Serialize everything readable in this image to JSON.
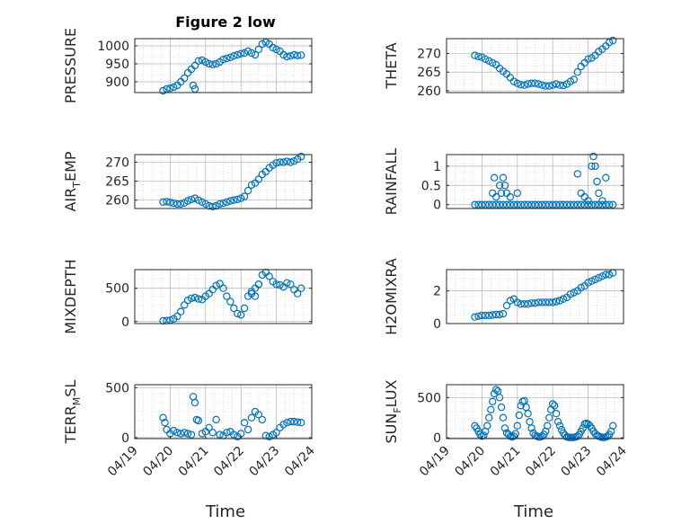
{
  "figure": {
    "title": "Figure 2 low",
    "xlabel": "Time"
  },
  "colors": {
    "marker": "#0072BD",
    "axis": "#262626",
    "grid": "#c8c8c8"
  },
  "chart_data": [
    {
      "type": "scatter",
      "ylabel_main": "PRESSURE",
      "ylabel_sub": "",
      "ylabel_tail": "",
      "xlim": [
        0,
        5
      ],
      "ylim": [
        870,
        1020
      ],
      "yticks": [
        900,
        950,
        1000
      ],
      "xticks": [],
      "xticklabels": [],
      "series": [
        {
          "x": [
            0.8,
            0.9,
            1.0,
            1.1,
            1.2,
            1.3,
            1.4,
            1.5,
            1.6,
            1.7,
            1.8,
            1.9,
            2.0,
            2.1,
            2.2,
            2.3,
            2.4,
            2.5,
            2.6,
            2.7,
            2.8,
            2.9,
            3.0,
            3.1,
            3.2,
            3.3,
            3.4,
            3.5,
            3.6,
            3.7,
            3.8,
            3.9,
            4.0,
            4.1,
            4.2,
            4.3,
            4.4,
            4.5,
            4.6,
            4.7,
            1.65,
            1.7
          ],
          "y": [
            875,
            880,
            882,
            885,
            890,
            900,
            910,
            925,
            935,
            945,
            958,
            960,
            955,
            950,
            948,
            950,
            955,
            962,
            965,
            968,
            972,
            975,
            978,
            980,
            985,
            980,
            975,
            990,
            1005,
            1010,
            1005,
            995,
            990,
            985,
            975,
            970,
            972,
            975,
            973,
            974,
            890,
            880
          ]
        }
      ]
    },
    {
      "type": "scatter",
      "ylabel_main": "THETA",
      "ylabel_sub": "",
      "ylabel_tail": "",
      "xlim": [
        0,
        5
      ],
      "ylim": [
        259.5,
        274
      ],
      "yticks": [
        260,
        265,
        270
      ],
      "xticks": [],
      "xticklabels": [],
      "series": [
        {
          "x": [
            0.8,
            0.9,
            1.0,
            1.1,
            1.2,
            1.3,
            1.4,
            1.5,
            1.6,
            1.7,
            1.8,
            1.9,
            2.0,
            2.1,
            2.2,
            2.3,
            2.4,
            2.5,
            2.6,
            2.7,
            2.8,
            2.9,
            3.0,
            3.1,
            3.2,
            3.3,
            3.4,
            3.5,
            3.6,
            3.7,
            3.8,
            3.9,
            4.0,
            4.1,
            4.2,
            4.3,
            4.4,
            4.5,
            4.6,
            4.7
          ],
          "y": [
            269.5,
            269.2,
            269.0,
            268.5,
            268.0,
            267.5,
            267.0,
            266.0,
            265.2,
            264.5,
            263.5,
            262.5,
            262.0,
            261.6,
            261.5,
            261.8,
            262.0,
            262.0,
            261.8,
            261.5,
            261.3,
            261.3,
            261.5,
            261.8,
            261.5,
            261.4,
            261.8,
            262.5,
            263.0,
            265.0,
            266.5,
            267.5,
            268.5,
            268.8,
            269.5,
            270.5,
            271.2,
            272.0,
            273.0,
            273.5
          ]
        }
      ]
    },
    {
      "type": "scatter",
      "ylabel_main": "AIR",
      "ylabel_sub": "T",
      "ylabel_tail": "EMP",
      "xlim": [
        0,
        5
      ],
      "ylim": [
        257.8,
        272
      ],
      "yticks": [
        260,
        265,
        270
      ],
      "xticks": [],
      "xticklabels": [],
      "series": [
        {
          "x": [
            0.8,
            0.9,
            1.0,
            1.1,
            1.2,
            1.3,
            1.4,
            1.5,
            1.6,
            1.7,
            1.8,
            1.9,
            2.0,
            2.1,
            2.2,
            2.3,
            2.4,
            2.5,
            2.6,
            2.7,
            2.8,
            2.9,
            3.0,
            3.1,
            3.2,
            3.3,
            3.4,
            3.5,
            3.6,
            3.7,
            3.8,
            3.9,
            4.0,
            4.1,
            4.2,
            4.3,
            4.4,
            4.5,
            4.6,
            4.7
          ],
          "y": [
            259.5,
            259.6,
            259.4,
            259.2,
            259.0,
            259.0,
            259.3,
            259.8,
            260.2,
            260.5,
            260.0,
            259.5,
            259.0,
            258.5,
            258.3,
            258.5,
            259.0,
            259.2,
            259.5,
            259.8,
            260.0,
            260.2,
            260.5,
            261.0,
            262.5,
            264.0,
            264.5,
            265.5,
            266.8,
            267.5,
            268.5,
            269.2,
            269.8,
            270.0,
            270.0,
            270.2,
            270.0,
            270.3,
            270.8,
            271.5
          ]
        }
      ]
    },
    {
      "type": "scatter",
      "ylabel_main": "RAINFALL",
      "ylabel_sub": "",
      "ylabel_tail": "",
      "xlim": [
        0,
        5
      ],
      "ylim": [
        -0.1,
        1.3
      ],
      "yticks": [
        0,
        0.5,
        1
      ],
      "xticks": [],
      "xticklabels": [],
      "series": [
        {
          "x": [
            0.8,
            0.9,
            1.0,
            1.1,
            1.2,
            1.3,
            1.4,
            1.5,
            1.6,
            1.7,
            1.8,
            1.9,
            2.0,
            2.1,
            2.2,
            2.3,
            2.4,
            2.5,
            2.6,
            2.7,
            2.8,
            2.9,
            3.0,
            3.1,
            3.2,
            3.3,
            3.4,
            3.5,
            3.6,
            3.7,
            3.8,
            3.9,
            4.0,
            4.1,
            4.2,
            4.3,
            4.4,
            4.5,
            4.6,
            4.7,
            1.3,
            1.35,
            1.4,
            1.5,
            1.55,
            1.6,
            1.65,
            1.7,
            1.8,
            2.0,
            3.7,
            3.8,
            3.9,
            4.0,
            4.1,
            4.15,
            4.2,
            4.25,
            4.3,
            4.5,
            4.4
          ],
          "y": [
            0,
            0,
            0,
            0,
            0,
            0,
            0,
            0,
            0,
            0,
            0,
            0,
            0,
            0,
            0,
            0,
            0,
            0,
            0,
            0,
            0,
            0,
            0,
            0,
            0,
            0,
            0,
            0,
            0,
            0,
            0,
            0,
            0,
            0,
            0,
            0,
            0,
            0,
            0,
            0,
            0.3,
            0.7,
            0.2,
            0.5,
            0.3,
            0.7,
            0.5,
            0.3,
            0.2,
            0.3,
            0.8,
            0.3,
            0.2,
            0.1,
            1.0,
            1.25,
            1.0,
            0.6,
            0.3,
            0.7,
            0.1
          ]
        }
      ]
    },
    {
      "type": "scatter",
      "ylabel_main": "MIXDEPTH",
      "ylabel_sub": "",
      "ylabel_tail": "",
      "xlim": [
        0,
        5
      ],
      "ylim": [
        -30,
        780
      ],
      "yticks": [
        0,
        500
      ],
      "xticks": [],
      "xticklabels": [],
      "series": [
        {
          "x": [
            0.8,
            0.9,
            1.0,
            1.1,
            1.2,
            1.3,
            1.4,
            1.5,
            1.6,
            1.7,
            1.8,
            1.9,
            2.0,
            2.1,
            2.2,
            2.3,
            2.4,
            2.5,
            2.6,
            2.7,
            2.8,
            2.9,
            3.0,
            3.1,
            3.2,
            3.3,
            3.4,
            3.5,
            3.6,
            3.7,
            3.8,
            3.9,
            4.0,
            4.1,
            4.2,
            4.3,
            4.4,
            4.5,
            4.6,
            4.7,
            3.3,
            3.4,
            3.5
          ],
          "y": [
            10,
            15,
            20,
            40,
            80,
            150,
            250,
            320,
            350,
            360,
            340,
            330,
            380,
            420,
            480,
            540,
            570,
            500,
            380,
            300,
            200,
            120,
            100,
            200,
            380,
            450,
            500,
            560,
            700,
            740,
            680,
            600,
            560,
            550,
            520,
            580,
            560,
            480,
            420,
            500,
            420,
            380,
            560
          ]
        }
      ]
    },
    {
      "type": "scatter",
      "ylabel_main": "H2OMIXRA",
      "ylabel_sub": "",
      "ylabel_tail": "",
      "xlim": [
        0,
        5
      ],
      "ylim": [
        0,
        3.3
      ],
      "yticks": [
        0,
        2
      ],
      "xticks": [],
      "xticklabels": [],
      "series": [
        {
          "x": [
            0.8,
            0.9,
            1.0,
            1.1,
            1.2,
            1.3,
            1.4,
            1.5,
            1.6,
            1.7,
            1.8,
            1.9,
            2.0,
            2.1,
            2.2,
            2.3,
            2.4,
            2.5,
            2.6,
            2.7,
            2.8,
            2.9,
            3.0,
            3.1,
            3.2,
            3.3,
            3.4,
            3.5,
            3.6,
            3.7,
            3.8,
            3.9,
            4.0,
            4.1,
            4.2,
            4.3,
            4.4,
            4.5,
            4.6,
            4.7
          ],
          "y": [
            0.4,
            0.45,
            0.5,
            0.5,
            0.5,
            0.52,
            0.55,
            0.55,
            0.6,
            1.1,
            1.4,
            1.5,
            1.3,
            1.2,
            1.2,
            1.2,
            1.25,
            1.25,
            1.3,
            1.3,
            1.3,
            1.3,
            1.3,
            1.35,
            1.4,
            1.5,
            1.6,
            1.8,
            1.9,
            2.0,
            2.2,
            2.3,
            2.5,
            2.6,
            2.7,
            2.8,
            2.9,
            3.0,
            3.0,
            3.1
          ]
        }
      ]
    },
    {
      "type": "scatter",
      "ylabel_main": "TERR",
      "ylabel_sub": "M",
      "ylabel_tail": "SL",
      "xlim": [
        0,
        5
      ],
      "ylim": [
        -10,
        530
      ],
      "yticks": [
        0,
        500
      ],
      "xticks": [
        0,
        1,
        2,
        3,
        4,
        5
      ],
      "xticklabels": [
        "04/19",
        "04/20",
        "04/21",
        "04/22",
        "04/23",
        "04/24"
      ],
      "series": [
        {
          "x": [
            0.8,
            0.85,
            0.9,
            1.0,
            1.1,
            1.2,
            1.3,
            1.4,
            1.5,
            1.6,
            1.65,
            1.7,
            1.75,
            1.8,
            1.9,
            2.0,
            2.1,
            2.2,
            2.3,
            2.4,
            2.5,
            2.6,
            2.7,
            2.8,
            2.9,
            3.0,
            3.1,
            3.2,
            3.3,
            3.4,
            3.5,
            3.6,
            3.7,
            3.8,
            3.9,
            4.0,
            4.1,
            4.2,
            4.3,
            4.4,
            4.5,
            4.6,
            4.7
          ],
          "y": [
            200,
            150,
            80,
            40,
            70,
            50,
            40,
            50,
            40,
            30,
            410,
            350,
            180,
            170,
            40,
            60,
            100,
            50,
            180,
            30,
            20,
            50,
            60,
            30,
            10,
            40,
            150,
            80,
            200,
            260,
            230,
            180,
            20,
            10,
            30,
            50,
            100,
            130,
            150,
            160,
            160,
            155,
            150
          ]
        }
      ]
    },
    {
      "type": "scatter",
      "ylabel_main": "SUN",
      "ylabel_sub": "F",
      "ylabel_tail": "LUX",
      "xlim": [
        0,
        5
      ],
      "ylim": [
        -10,
        660
      ],
      "yticks": [
        0,
        500
      ],
      "xticks": [
        0,
        1,
        2,
        3,
        4,
        5
      ],
      "xticklabels": [
        "04/19",
        "04/20",
        "04/21",
        "04/22",
        "04/23",
        "04/24"
      ],
      "series": [
        {
          "x": [
            0.8,
            0.85,
            0.9,
            0.95,
            1.0,
            1.05,
            1.1,
            1.15,
            1.2,
            1.25,
            1.3,
            1.35,
            1.4,
            1.45,
            1.5,
            1.55,
            1.6,
            1.65,
            1.7,
            1.75,
            1.8,
            1.85,
            1.9,
            1.95,
            2.0,
            2.05,
            2.1,
            2.15,
            2.2,
            2.25,
            2.3,
            2.35,
            2.4,
            2.45,
            2.5,
            2.55,
            2.6,
            2.65,
            2.7,
            2.75,
            2.8,
            2.85,
            2.9,
            2.95,
            3.0,
            3.05,
            3.1,
            3.15,
            3.2,
            3.25,
            3.3,
            3.35,
            3.4,
            3.45,
            3.5,
            3.55,
            3.6,
            3.65,
            3.7,
            3.75,
            3.8,
            3.85,
            3.9,
            3.95,
            4.0,
            4.05,
            4.1,
            4.15,
            4.2,
            4.25,
            4.3,
            4.35,
            4.4,
            4.45,
            4.5,
            4.55,
            4.6,
            4.65,
            4.7
          ],
          "y": [
            150,
            120,
            80,
            40,
            20,
            30,
            80,
            150,
            250,
            350,
            450,
            550,
            600,
            580,
            500,
            380,
            250,
            120,
            60,
            40,
            20,
            10,
            20,
            50,
            150,
            280,
            400,
            450,
            460,
            380,
            300,
            200,
            120,
            60,
            30,
            20,
            10,
            10,
            20,
            40,
            80,
            150,
            250,
            350,
            420,
            400,
            300,
            200,
            150,
            100,
            60,
            30,
            10,
            5,
            5,
            5,
            5,
            10,
            20,
            40,
            80,
            120,
            170,
            180,
            170,
            150,
            120,
            80,
            50,
            30,
            20,
            10,
            5,
            5,
            10,
            20,
            40,
            80,
            150
          ]
        }
      ]
    }
  ]
}
